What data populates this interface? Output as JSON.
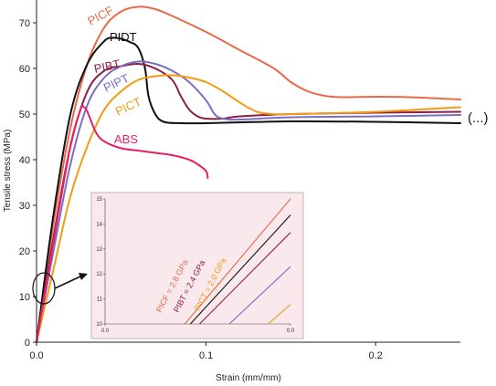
{
  "chart_data": {
    "type": "line",
    "xlabel": "Strain (mm/mm)",
    "ylabel": "Tensile stress (MPa)",
    "xlim": [
      0,
      0.25
    ],
    "ylim": [
      0,
      75
    ],
    "x_ticks": [
      "0.0",
      "0.1",
      "0.2"
    ],
    "y_ticks": [
      "0",
      "10",
      "20",
      "30",
      "40",
      "50",
      "60",
      "70"
    ],
    "continuation_marker": "(...)",
    "series": [
      {
        "name": "PICF",
        "color": "#e8694a",
        "points": [
          [
            0,
            0
          ],
          [
            0.01,
            26
          ],
          [
            0.02,
            47
          ],
          [
            0.03,
            61
          ],
          [
            0.04,
            69
          ],
          [
            0.05,
            72.5
          ],
          [
            0.06,
            73.5
          ],
          [
            0.07,
            73
          ],
          [
            0.08,
            71.5
          ],
          [
            0.1,
            68
          ],
          [
            0.12,
            64
          ],
          [
            0.14,
            60
          ],
          [
            0.15,
            57
          ],
          [
            0.16,
            55
          ],
          [
            0.17,
            54
          ],
          [
            0.18,
            53.7
          ],
          [
            0.2,
            53.8
          ],
          [
            0.22,
            53.7
          ],
          [
            0.25,
            53.2
          ]
        ]
      },
      {
        "name": "PIDT",
        "color": "#111111",
        "points": [
          [
            0,
            0
          ],
          [
            0.01,
            28
          ],
          [
            0.02,
            50
          ],
          [
            0.03,
            61
          ],
          [
            0.04,
            66
          ],
          [
            0.045,
            66.7
          ],
          [
            0.05,
            66.5
          ],
          [
            0.055,
            65.8
          ],
          [
            0.06,
            64.5
          ],
          [
            0.064,
            60
          ],
          [
            0.066,
            54
          ],
          [
            0.07,
            50
          ],
          [
            0.075,
            48.3
          ],
          [
            0.085,
            48
          ],
          [
            0.1,
            48
          ],
          [
            0.15,
            48.4
          ],
          [
            0.2,
            48.3
          ],
          [
            0.25,
            48
          ]
        ]
      },
      {
        "name": "PIBT",
        "color": "#8c1f45",
        "points": [
          [
            0,
            0
          ],
          [
            0.01,
            23
          ],
          [
            0.02,
            43
          ],
          [
            0.03,
            55
          ],
          [
            0.04,
            59.5
          ],
          [
            0.05,
            60.5
          ],
          [
            0.06,
            61
          ],
          [
            0.07,
            60
          ],
          [
            0.08,
            57.5
          ],
          [
            0.085,
            54
          ],
          [
            0.09,
            51
          ],
          [
            0.095,
            49.5
          ],
          [
            0.1,
            49
          ],
          [
            0.11,
            49
          ],
          [
            0.12,
            49.5
          ],
          [
            0.15,
            50
          ],
          [
            0.2,
            50.3
          ],
          [
            0.25,
            50.5
          ]
        ]
      },
      {
        "name": "PIPT",
        "color": "#7a6fc2",
        "points": [
          [
            0,
            0
          ],
          [
            0.01,
            20
          ],
          [
            0.02,
            39
          ],
          [
            0.03,
            52
          ],
          [
            0.04,
            58
          ],
          [
            0.05,
            60.5
          ],
          [
            0.06,
            61.5
          ],
          [
            0.07,
            61
          ],
          [
            0.08,
            59.5
          ],
          [
            0.09,
            57
          ],
          [
            0.1,
            53
          ],
          [
            0.105,
            50
          ],
          [
            0.11,
            49
          ],
          [
            0.12,
            48.8
          ],
          [
            0.15,
            49.3
          ],
          [
            0.2,
            49.5
          ],
          [
            0.25,
            49.8
          ]
        ]
      },
      {
        "name": "PICT",
        "color": "#f39c12",
        "points": [
          [
            0,
            0
          ],
          [
            0.01,
            16
          ],
          [
            0.02,
            32
          ],
          [
            0.03,
            43
          ],
          [
            0.04,
            51
          ],
          [
            0.05,
            55
          ],
          [
            0.06,
            57.5
          ],
          [
            0.07,
            58.3
          ],
          [
            0.08,
            58.5
          ],
          [
            0.09,
            58
          ],
          [
            0.1,
            57
          ],
          [
            0.11,
            55
          ],
          [
            0.12,
            52.5
          ],
          [
            0.13,
            50.5
          ],
          [
            0.14,
            50
          ],
          [
            0.15,
            50
          ],
          [
            0.2,
            50.5
          ],
          [
            0.25,
            51.5
          ]
        ]
      },
      {
        "name": "ABS",
        "color": "#e91e63",
        "points": [
          [
            0,
            0
          ],
          [
            0.01,
            22
          ],
          [
            0.02,
            43
          ],
          [
            0.026,
            51
          ],
          [
            0.028,
            51.5
          ],
          [
            0.03,
            50.5
          ],
          [
            0.035,
            46
          ],
          [
            0.04,
            44
          ],
          [
            0.05,
            42.5
          ],
          [
            0.06,
            42
          ],
          [
            0.07,
            41.5
          ],
          [
            0.08,
            41
          ],
          [
            0.09,
            40
          ],
          [
            0.095,
            39
          ],
          [
            0.1,
            37.5
          ],
          [
            0.101,
            36
          ]
        ]
      }
    ],
    "inset": {
      "xlim": [
        0,
        0.01
      ],
      "ylim": [
        10,
        15
      ],
      "x_ticks": [
        "0.0",
        "0.0"
      ],
      "y_ticks": [
        "10",
        "11",
        "12",
        "13",
        "14",
        "15"
      ],
      "background": "#f9e9ec",
      "series": [
        {
          "name": "PICF",
          "color": "#e8694a",
          "x_at_10": 0.0043,
          "x_at_15": 0.01
        },
        {
          "name": "PIDT",
          "color": "#111111",
          "x_at_10": 0.0046,
          "x_at_15": 0.0108
        },
        {
          "name": "PIBT",
          "color": "#8c1f45",
          "x_at_10": 0.0051,
          "x_at_15": 0.0118
        },
        {
          "name": "PIPT",
          "color": "#7a6fc2",
          "x_at_10": 0.0067,
          "x_at_15": 0.0139
        },
        {
          "name": "PICT",
          "color": "#f39c12",
          "x_at_10": 0.0088,
          "x_at_15": 0.0165
        }
      ],
      "annotations": [
        {
          "text": "PICF = 2.8 GPa",
          "color": "#e8694a"
        },
        {
          "text": "PIBT = 2.4 GPa",
          "color": "#8c1f45"
        },
        {
          "text": "PICT = 2.0 GPa",
          "color": "#f39c12"
        }
      ]
    }
  }
}
